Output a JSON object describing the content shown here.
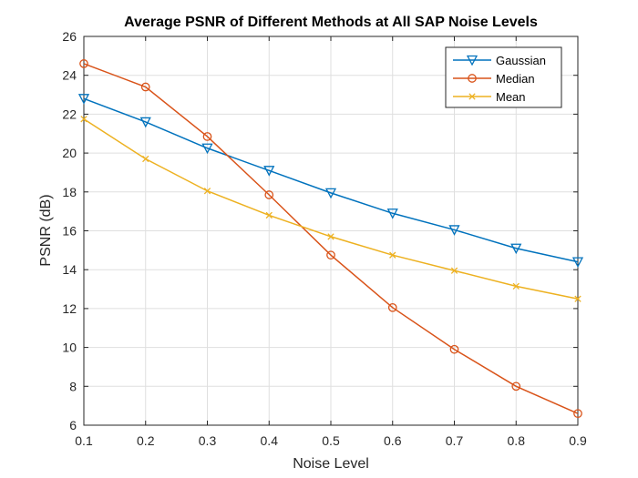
{
  "chart_data": {
    "type": "line",
    "title": "Average PSNR of Different Methods at All SAP Noise Levels",
    "xlabel": "Noise Level",
    "ylabel": "PSNR (dB)",
    "xlim": [
      0.1,
      0.9
    ],
    "ylim": [
      6,
      26
    ],
    "xticks": [
      "0.1",
      "0.2",
      "0.3",
      "0.4",
      "0.5",
      "0.6",
      "0.7",
      "0.8",
      "0.9"
    ],
    "yticks": [
      "6",
      "8",
      "10",
      "12",
      "14",
      "16",
      "18",
      "20",
      "22",
      "24",
      "26"
    ],
    "grid": true,
    "legend_position": "top-right",
    "x": [
      0.1,
      0.2,
      0.3,
      0.4,
      0.5,
      0.6,
      0.7,
      0.8,
      0.9
    ],
    "series": [
      {
        "name": "Gaussian",
        "color": "#0072BD",
        "marker": "triangle-down",
        "values": [
          22.8,
          21.6,
          20.25,
          19.1,
          17.95,
          16.9,
          16.05,
          15.1,
          14.4
        ]
      },
      {
        "name": "Median",
        "color": "#D95319",
        "marker": "circle",
        "values": [
          24.6,
          23.4,
          20.85,
          17.85,
          14.75,
          12.05,
          9.9,
          8.0,
          6.6
        ]
      },
      {
        "name": "Mean",
        "color": "#EDB120",
        "marker": "x",
        "values": [
          21.75,
          19.7,
          18.05,
          16.8,
          15.7,
          14.75,
          13.95,
          13.15,
          12.5
        ]
      }
    ]
  }
}
